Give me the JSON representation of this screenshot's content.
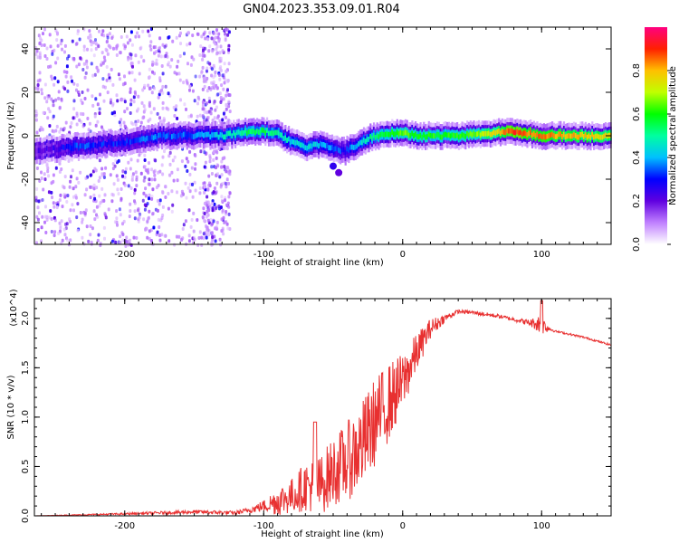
{
  "title": "GN04.2023.353.09.01.R04",
  "chart_data": [
    {
      "type": "heatmap",
      "xlabel": "Height of straight line (km)",
      "ylabel": "Frequency (Hz)",
      "xlim": [
        -265,
        150
      ],
      "ylim": [
        -50,
        50
      ],
      "x_ticks": [
        -200,
        -100,
        0,
        100
      ],
      "y_ticks": [
        -40,
        -20,
        0,
        20,
        40
      ],
      "colorbar": {
        "label": "Normalized spectral amplitude",
        "range": [
          0,
          1
        ],
        "ticks": [
          0.0,
          0.2,
          0.4,
          0.6,
          0.8
        ],
        "colormap": [
          "#ffffff",
          "#c080ff",
          "#6000e0",
          "#0000ff",
          "#00c0ff",
          "#00ffa0",
          "#00ff00",
          "#c0ff00",
          "#ffc000",
          "#ff2000",
          "#ff0080"
        ]
      },
      "ridge": {
        "x": [
          -265,
          -250,
          -235,
          -220,
          -200,
          -185,
          -170,
          -155,
          -140,
          -130,
          -120,
          -110,
          -100,
          -90,
          -80,
          -70,
          -60,
          -50,
          -42,
          -35,
          -28,
          -20,
          -10,
          0,
          10,
          20,
          40,
          60,
          80,
          90,
          100,
          120,
          150
        ],
        "frequency": [
          -7,
          -6,
          -5,
          -4,
          -3,
          -1,
          0,
          0,
          0,
          0,
          1,
          2,
          2,
          1,
          -3,
          -5,
          -4,
          -6,
          -7,
          -5,
          -2,
          0,
          1,
          1,
          0,
          0,
          0,
          1,
          2,
          1,
          0,
          0,
          0
        ],
        "amplitude": [
          0.2,
          0.25,
          0.35,
          0.3,
          0.3,
          0.35,
          0.35,
          0.35,
          0.4,
          0.45,
          0.5,
          0.55,
          0.55,
          0.5,
          0.45,
          0.45,
          0.4,
          0.35,
          0.3,
          0.4,
          0.45,
          0.55,
          0.6,
          0.65,
          0.6,
          0.6,
          0.6,
          0.7,
          0.9,
          0.85,
          0.85,
          0.8,
          0.75
        ]
      }
    },
    {
      "type": "line",
      "xlabel": "Height of straight line (km)",
      "ylabel": "SNR (10 * v/v)",
      "y_scale_label": "(x10^4)",
      "xlim": [
        -265,
        150
      ],
      "ylim": [
        0,
        2.2
      ],
      "x_ticks": [
        -200,
        -100,
        0,
        100
      ],
      "y_ticks": [
        0.0,
        0.5,
        1.0,
        1.5,
        2.0
      ],
      "color": "#e83030",
      "x": [
        -265,
        -200,
        -150,
        -120,
        -110,
        -100,
        -90,
        -80,
        -70,
        -60,
        -50,
        -40,
        -30,
        -20,
        -10,
        0,
        10,
        20,
        30,
        40,
        50,
        60,
        70,
        80,
        90,
        95,
        100,
        105,
        110,
        120,
        130,
        140,
        150
      ],
      "y": [
        0.0,
        0.02,
        0.04,
        0.03,
        0.06,
        0.1,
        0.15,
        0.2,
        0.3,
        0.3,
        0.45,
        0.55,
        0.7,
        0.95,
        1.15,
        1.35,
        1.65,
        1.9,
        2.0,
        2.07,
        2.06,
        2.04,
        2.02,
        1.99,
        1.96,
        1.95,
        1.94,
        1.9,
        1.87,
        1.84,
        1.81,
        1.77,
        1.73
      ],
      "noise": [
        0.0,
        0.01,
        0.02,
        0.02,
        0.03,
        0.06,
        0.15,
        0.18,
        0.25,
        0.3,
        0.35,
        0.4,
        0.45,
        0.45,
        0.4,
        0.3,
        0.2,
        0.1,
        0.04,
        0.02,
        0.02,
        0.02,
        0.02,
        0.02,
        0.03,
        0.06,
        0.12,
        0.03,
        0.01,
        0.01,
        0.01,
        0.01,
        0.01
      ]
    }
  ]
}
